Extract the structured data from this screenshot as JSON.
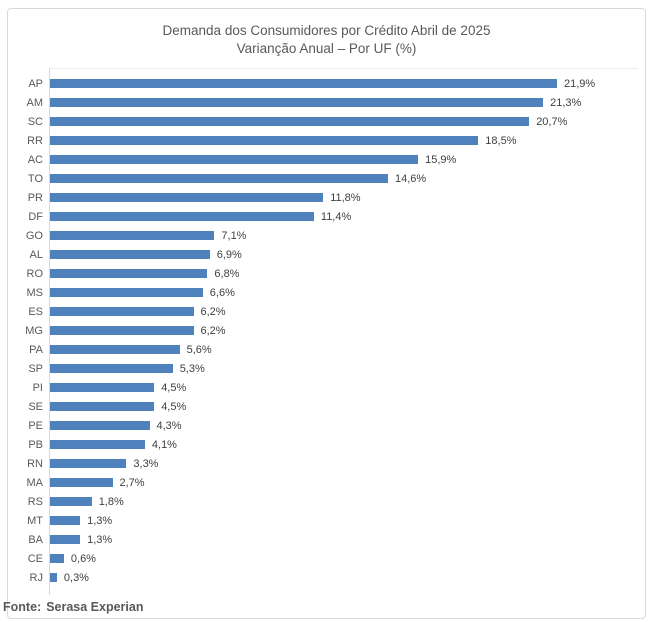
{
  "title_line1": "Demanda dos Consumidores por Crédito Abril de 2025",
  "title_line2": "Varianção Anual – Por UF (%)",
  "footer": {
    "prefix": "Fonte:",
    "source": "Serasa Experian"
  },
  "colors": {
    "bar": "#4f81bd",
    "frame_border": "#d9d9d9",
    "title_text": "#595959",
    "value_text": "#404040"
  },
  "chart_data": {
    "type": "bar",
    "orientation": "horizontal",
    "title": "Demanda dos Consumidores por Crédito Abril de 2025",
    "subtitle": "Varianção Anual – Por UF (%)",
    "xlabel": "",
    "ylabel": "",
    "xlim": [
      0,
      23
    ],
    "grid": false,
    "legend_position": "none",
    "categories": [
      "AP",
      "AM",
      "SC",
      "RR",
      "AC",
      "TO",
      "PR",
      "DF",
      "GO",
      "AL",
      "RO",
      "MS",
      "ES",
      "MG",
      "PA",
      "SP",
      "PI",
      "SE",
      "PE",
      "PB",
      "RN",
      "MA",
      "RS",
      "MT",
      "BA",
      "CE",
      "RJ"
    ],
    "values": [
      21.9,
      21.3,
      20.7,
      18.5,
      15.9,
      14.6,
      11.8,
      11.4,
      7.1,
      6.9,
      6.8,
      6.6,
      6.2,
      6.2,
      5.6,
      5.3,
      4.5,
      4.5,
      4.3,
      4.1,
      3.3,
      2.7,
      1.8,
      1.3,
      1.3,
      0.6,
      0.3
    ],
    "value_labels": [
      "21,9%",
      "21,3%",
      "20,7%",
      "18,5%",
      "15,9%",
      "14,6%",
      "11,8%",
      "11,4%",
      "7,1%",
      "6,9%",
      "6,8%",
      "6,6%",
      "6,2%",
      "6,2%",
      "5,6%",
      "5,3%",
      "4,5%",
      "4,5%",
      "4,3%",
      "4,1%",
      "3,3%",
      "2,7%",
      "1,8%",
      "1,3%",
      "1,3%",
      "0,6%",
      "0,3%"
    ]
  }
}
